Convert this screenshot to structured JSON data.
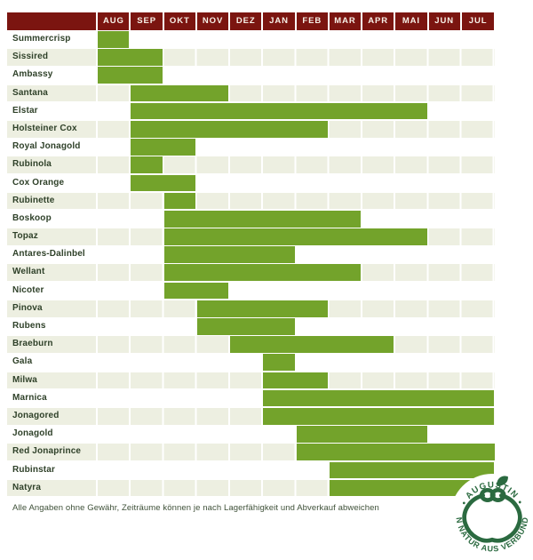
{
  "chart_data": {
    "type": "bar",
    "subtype": "horizontal-range-gantt (seasonal availability)",
    "title": "",
    "months": [
      "AUG",
      "SEP",
      "OKT",
      "NOV",
      "DEZ",
      "JAN",
      "FEB",
      "MAR",
      "APR",
      "MAI",
      "JUN",
      "JUL"
    ],
    "rows": [
      {
        "name": "Summercrisp",
        "start": "AUG",
        "end": "AUG"
      },
      {
        "name": "Sissired",
        "start": "AUG",
        "end": "SEP"
      },
      {
        "name": "Ambassy",
        "start": "AUG",
        "end": "SEP"
      },
      {
        "name": "Santana",
        "start": "SEP",
        "end": "NOV"
      },
      {
        "name": "Elstar",
        "start": "SEP",
        "end": "MAI"
      },
      {
        "name": "Holsteiner Cox",
        "start": "SEP",
        "end": "FEB"
      },
      {
        "name": "Royal Jonagold",
        "start": "SEP",
        "end": "OKT"
      },
      {
        "name": "Rubinola",
        "start": "SEP",
        "end": "SEP"
      },
      {
        "name": "Cox Orange",
        "start": "SEP",
        "end": "OKT"
      },
      {
        "name": "Rubinette",
        "start": "OKT",
        "end": "OKT"
      },
      {
        "name": "Boskoop",
        "start": "OKT",
        "end": "MAR"
      },
      {
        "name": "Topaz",
        "start": "OKT",
        "end": "MAI"
      },
      {
        "name": "Antares-Dalinbel",
        "start": "OKT",
        "end": "JAN"
      },
      {
        "name": "Wellant",
        "start": "OKT",
        "end": "MAR"
      },
      {
        "name": "Nicoter",
        "start": "OKT",
        "end": "NOV"
      },
      {
        "name": "Pinova",
        "start": "NOV",
        "end": "FEB"
      },
      {
        "name": "Rubens",
        "start": "NOV",
        "end": "JAN"
      },
      {
        "name": "Braeburn",
        "start": "DEZ",
        "end": "APR"
      },
      {
        "name": "Gala",
        "start": "JAN",
        "end": "JAN"
      },
      {
        "name": "Milwa",
        "start": "JAN",
        "end": "FEB"
      },
      {
        "name": "Marnica",
        "start": "JAN",
        "end": "JUL"
      },
      {
        "name": "Jonagored",
        "start": "JAN",
        "end": "JUL"
      },
      {
        "name": "Jonagold",
        "start": "FEB",
        "end": "MAI"
      },
      {
        "name": "Red Jonaprince",
        "start": "FEB",
        "end": "JUL"
      },
      {
        "name": "Rubinstar",
        "start": "MAR",
        "end": "JUL"
      },
      {
        "name": "Natyra",
        "start": "MAR",
        "end": "JUL"
      }
    ],
    "legend": "none",
    "grid": "faint white column separators on alternating striped rows"
  },
  "footer": {
    "disclaimer": "Alle Angaben ohne Gewähr, Zeiträume können je nach Lagerfähigkeit und Abverkauf abweichen"
  },
  "logo": {
    "top_text": "• AUGUSTIN •",
    "bottom_text": "VON NATUR AUS VERBUNDEN"
  },
  "colors": {
    "header_bg": "#7b1510",
    "month_text": "#f7f1e8",
    "bar": "#73a32b",
    "row_alt": "#edefe1",
    "label": "#2f4129",
    "footer_text": "#3e5038",
    "logo_green": "#2b6a40"
  }
}
